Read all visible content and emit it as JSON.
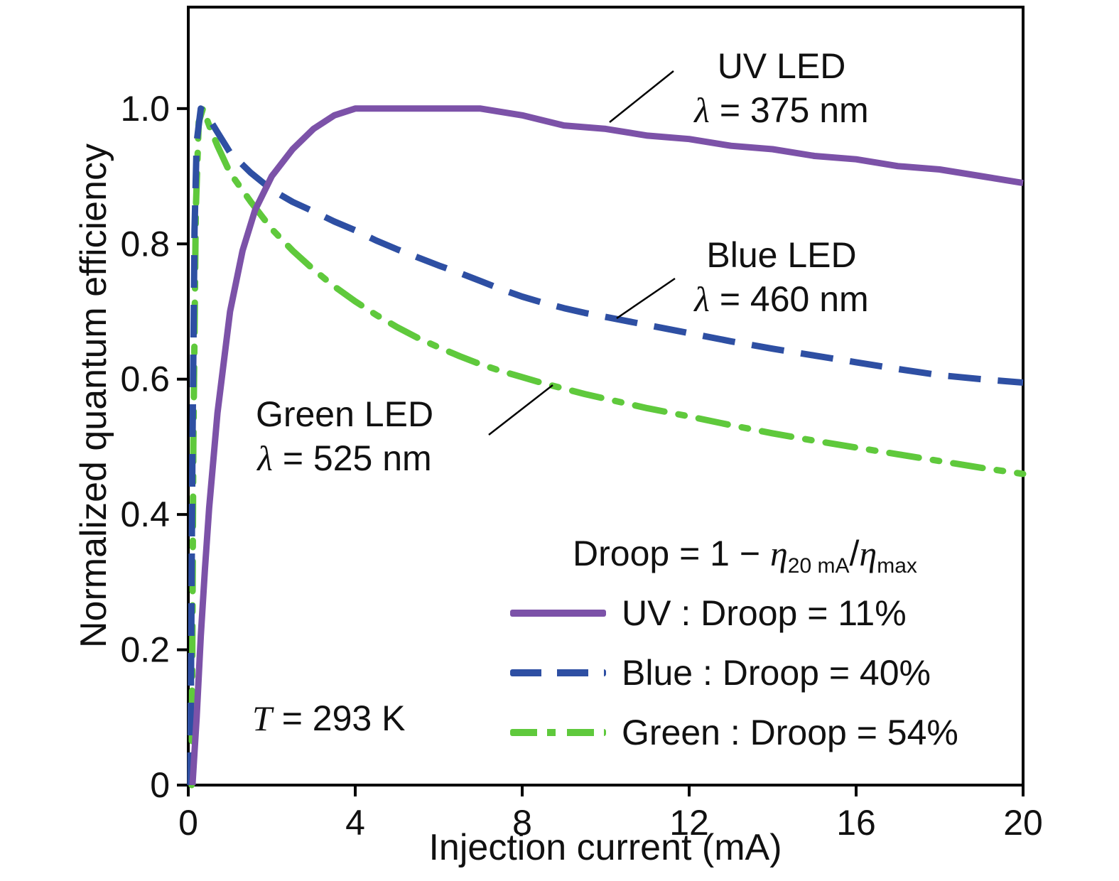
{
  "figure": {
    "t_symbol": "T",
    "t_value": " = 293 K"
  },
  "chart_data": {
    "type": "line",
    "title": "",
    "xlabel": "Injection current (mA)",
    "ylabel": "Normalized quantum efficiency",
    "xlim": [
      0,
      20
    ],
    "ylim": [
      0,
      1.15
    ],
    "grid": false,
    "legend_position": "lower right inside",
    "x_ticks": [
      {
        "v": 0,
        "label": "0"
      },
      {
        "v": 4,
        "label": "4"
      },
      {
        "v": 8,
        "label": "8"
      },
      {
        "v": 12,
        "label": "12"
      },
      {
        "v": 16,
        "label": "16"
      },
      {
        "v": 20,
        "label": "20"
      }
    ],
    "y_ticks": [
      {
        "v": 0,
        "label": "0"
      },
      {
        "v": 0.2,
        "label": "0.2"
      },
      {
        "v": 0.4,
        "label": "0.4"
      },
      {
        "v": 0.6,
        "label": "0.6"
      },
      {
        "v": 0.8,
        "label": "0.8"
      },
      {
        "v": 1.0,
        "label": "1.0"
      }
    ],
    "series": [
      {
        "name": "UV LED",
        "label": "UV LED",
        "lambda_symbol": "λ",
        "lambda_value": " = 375 nm",
        "wavelength_nm": 375,
        "color": "#7c52a8",
        "style": "solid",
        "droop_pct": 11,
        "points": [
          [
            0.1,
            0
          ],
          [
            0.2,
            0.1
          ],
          [
            0.3,
            0.22
          ],
          [
            0.4,
            0.32
          ],
          [
            0.5,
            0.41
          ],
          [
            0.7,
            0.55
          ],
          [
            1,
            0.7
          ],
          [
            1.3,
            0.79
          ],
          [
            1.6,
            0.85
          ],
          [
            2,
            0.9
          ],
          [
            2.5,
            0.94
          ],
          [
            3,
            0.97
          ],
          [
            3.5,
            0.99
          ],
          [
            4,
            1
          ],
          [
            5,
            1
          ],
          [
            6,
            1
          ],
          [
            7,
            1
          ],
          [
            7.5,
            0.995
          ],
          [
            8,
            0.99
          ],
          [
            9,
            0.975
          ],
          [
            10,
            0.97
          ],
          [
            11,
            0.96
          ],
          [
            12,
            0.955
          ],
          [
            13,
            0.945
          ],
          [
            14,
            0.94
          ],
          [
            15,
            0.93
          ],
          [
            16,
            0.925
          ],
          [
            17,
            0.915
          ],
          [
            18,
            0.91
          ],
          [
            19,
            0.9
          ],
          [
            20,
            0.89
          ]
        ]
      },
      {
        "name": "Blue LED",
        "label": "Blue LED",
        "lambda_symbol": "λ",
        "lambda_value": " = 460 nm",
        "wavelength_nm": 460,
        "color": "#2e4fa3",
        "style": "dashed",
        "droop_pct": 40,
        "points": [
          [
            0.05,
            0
          ],
          [
            0.1,
            0.5
          ],
          [
            0.15,
            0.82
          ],
          [
            0.2,
            0.95
          ],
          [
            0.3,
            1
          ],
          [
            0.5,
            0.985
          ],
          [
            0.7,
            0.965
          ],
          [
            1,
            0.935
          ],
          [
            1.5,
            0.905
          ],
          [
            2,
            0.88
          ],
          [
            2.5,
            0.862
          ],
          [
            3,
            0.848
          ],
          [
            3.5,
            0.833
          ],
          [
            4,
            0.82
          ],
          [
            4.5,
            0.805
          ],
          [
            5,
            0.792
          ],
          [
            5.5,
            0.78
          ],
          [
            6,
            0.768
          ],
          [
            6.5,
            0.757
          ],
          [
            7,
            0.745
          ],
          [
            7.5,
            0.733
          ],
          [
            8,
            0.722
          ],
          [
            8.5,
            0.713
          ],
          [
            9,
            0.705
          ],
          [
            9.5,
            0.698
          ],
          [
            10,
            0.692
          ],
          [
            11,
            0.68
          ],
          [
            12,
            0.668
          ],
          [
            13,
            0.656
          ],
          [
            14,
            0.645
          ],
          [
            15,
            0.635
          ],
          [
            16,
            0.625
          ],
          [
            17,
            0.615
          ],
          [
            18,
            0.606
          ],
          [
            19,
            0.6
          ],
          [
            20,
            0.595
          ]
        ]
      },
      {
        "name": "Green LED",
        "label": "Green LED",
        "lambda_symbol": "λ",
        "lambda_value": " = 525 nm",
        "wavelength_nm": 525,
        "color": "#5fc93c",
        "style": "dashdot",
        "droop_pct": 54,
        "points": [
          [
            0.08,
            0
          ],
          [
            0.12,
            0.5
          ],
          [
            0.18,
            0.85
          ],
          [
            0.25,
            0.98
          ],
          [
            0.35,
            1
          ],
          [
            0.5,
            0.975
          ],
          [
            0.7,
            0.945
          ],
          [
            1,
            0.905
          ],
          [
            1.5,
            0.862
          ],
          [
            2,
            0.822
          ],
          [
            2.5,
            0.79
          ],
          [
            3,
            0.762
          ],
          [
            3.5,
            0.737
          ],
          [
            4,
            0.715
          ],
          [
            4.5,
            0.695
          ],
          [
            5,
            0.677
          ],
          [
            5.5,
            0.661
          ],
          [
            6,
            0.647
          ],
          [
            6.5,
            0.634
          ],
          [
            7,
            0.622
          ],
          [
            7.5,
            0.612
          ],
          [
            8,
            0.603
          ],
          [
            8.5,
            0.594
          ],
          [
            9,
            0.586
          ],
          [
            9.5,
            0.578
          ],
          [
            10,
            0.571
          ],
          [
            11,
            0.557
          ],
          [
            12,
            0.545
          ],
          [
            13,
            0.532
          ],
          [
            14,
            0.52
          ],
          [
            15,
            0.509
          ],
          [
            16,
            0.499
          ],
          [
            17,
            0.489
          ],
          [
            18,
            0.479
          ],
          [
            19,
            0.469
          ],
          [
            20,
            0.46
          ]
        ]
      }
    ]
  },
  "legend": {
    "formula": {
      "prefix": "Droop = 1 − ",
      "eta1": "η",
      "sub1": "20 mA",
      "slash": "/",
      "eta2": "η",
      "sub2": "max"
    },
    "items": [
      {
        "label": "UV : Droop = 11%"
      },
      {
        "label": "Blue : Droop = 40%"
      },
      {
        "label": "Green : Droop = 54%"
      }
    ]
  }
}
